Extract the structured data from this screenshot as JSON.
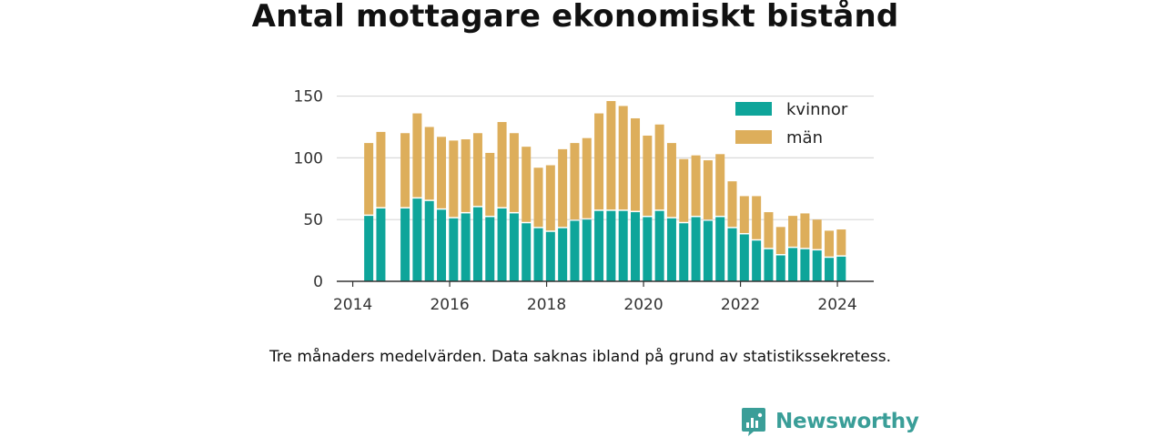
{
  "chart_data": {
    "type": "bar",
    "stacked": true,
    "title": "Antal mottagare ekonomiskt bistånd",
    "xlabel": "",
    "ylabel": "",
    "ylim": [
      0,
      160
    ],
    "y_ticks": [
      0,
      50,
      100,
      150
    ],
    "x_ticks": [
      2014,
      2016,
      2018,
      2020,
      2022,
      2024
    ],
    "x_range": [
      2013.67,
      2024.75
    ],
    "grid": true,
    "legend_position": "top-right",
    "x": [
      2014.33,
      2014.58,
      2015.08,
      2015.33,
      2015.58,
      2015.83,
      2016.08,
      2016.33,
      2016.58,
      2016.83,
      2017.08,
      2017.33,
      2017.58,
      2017.83,
      2018.08,
      2018.33,
      2018.58,
      2018.83,
      2019.08,
      2019.33,
      2019.58,
      2019.83,
      2020.08,
      2020.33,
      2020.58,
      2020.83,
      2021.08,
      2021.33,
      2021.58,
      2021.83,
      2022.08,
      2022.33,
      2022.58,
      2022.83,
      2023.08,
      2023.33,
      2023.58,
      2023.83,
      2024.08
    ],
    "series": [
      {
        "name": "kvinnor",
        "color": "#0ea59a",
        "values": [
          53,
          59,
          59,
          67,
          65,
          58,
          51,
          55,
          60,
          52,
          59,
          55,
          47,
          43,
          40,
          43,
          49,
          50,
          57,
          57,
          57,
          56,
          52,
          57,
          51,
          47,
          52,
          49,
          52,
          43,
          38,
          33,
          26,
          21,
          27,
          26,
          25,
          19,
          20
        ]
      },
      {
        "name": "män",
        "color": "#ddae5b",
        "values": [
          59,
          62,
          61,
          69,
          60,
          59,
          63,
          60,
          60,
          52,
          70,
          65,
          62,
          49,
          54,
          64,
          63,
          66,
          79,
          89,
          85,
          76,
          66,
          70,
          61,
          52,
          50,
          49,
          51,
          38,
          31,
          36,
          30,
          23,
          26,
          29,
          25,
          22,
          22
        ]
      }
    ]
  },
  "note": "Tre månaders medelvärden. Data saknas ibland på grund av statistikssekretess.",
  "brand": {
    "name": "Newsworthy",
    "color": "#3a9e98"
  }
}
